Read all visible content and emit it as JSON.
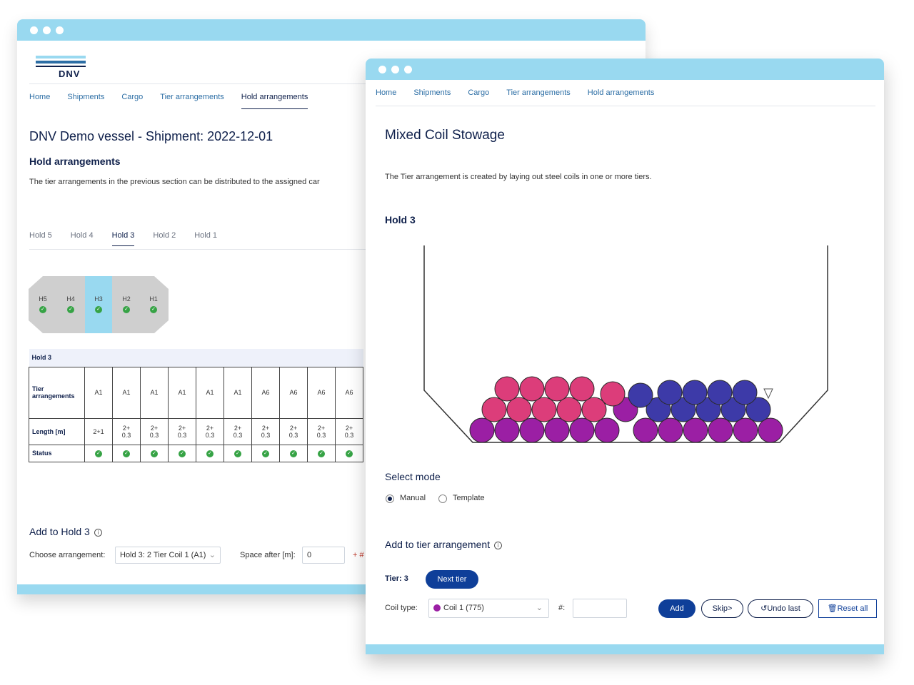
{
  "back_window": {
    "brand": "DNV",
    "nav": [
      "Home",
      "Shipments",
      "Cargo",
      "Tier arrangements",
      "Hold arrangements"
    ],
    "title": "DNV Demo vessel - Shipment: 2022-12-01",
    "subtitle": "Hold arrangements",
    "description": "The tier arrangements in the previous section can be distributed to the assigned car",
    "hold_tabs": [
      "Hold 5",
      "Hold 4",
      "Hold 3",
      "Hold 2",
      "Hold 1"
    ],
    "ship_holds": [
      "H5",
      "H4",
      "H3",
      "H2",
      "H1"
    ],
    "table": {
      "caption": "Hold 3",
      "tier_label": "Tier arrangements",
      "length_label": "Length [m]",
      "status_label": "Status",
      "arrangements": [
        "A1",
        "A1",
        "A1",
        "A1",
        "A1",
        "A1",
        "A6",
        "A6",
        "A6",
        "A6"
      ],
      "length_first": "2+1",
      "lengths": [
        [
          "2+",
          "0.3"
        ],
        [
          "2+",
          "0.3"
        ],
        [
          "2+",
          "0.3"
        ],
        [
          "2+",
          "0.3"
        ],
        [
          "2+",
          "0.3"
        ],
        [
          "2+",
          "0.3"
        ],
        [
          "2+",
          "0.3"
        ],
        [
          "2+",
          "0.3"
        ],
        [
          "2+",
          "0.3"
        ],
        [
          "2+",
          "0.3"
        ]
      ]
    },
    "add_title": "Add to Hold 3",
    "choose_label": "Choose arrangement:",
    "choose_value": "Hold 3: 2 Tier Coil 1 (A1)",
    "space_label": "Space after [m]:",
    "space_value": "0",
    "trailing": "+ #"
  },
  "front_window": {
    "nav": [
      "Home",
      "Shipments",
      "Cargo",
      "Tier arrangements",
      "Hold arrangements"
    ],
    "title": "Mixed Coil Stowage",
    "description": "The Tier arrangement is created by laying out steel coils in one or more tiers.",
    "hold_title": "Hold 3",
    "mode_title": "Select mode",
    "mode_manual": "Manual",
    "mode_template": "Template",
    "mode_selected": "Manual",
    "add_tier_title": "Add to tier arrangement",
    "tier_label": "Tier: 3",
    "next_tier": "Next tier",
    "coil_type_label": "Coil type:",
    "coil_type_value": "Coil 1 (775)",
    "count_label": "#:",
    "count_value": "",
    "add_btn": "Add",
    "skip_btn": "Skip>",
    "undo_btn": "Undo last",
    "reset_btn": "Reset all"
  },
  "colors": {
    "accent": "#99d9f0",
    "navy": "#0f204b",
    "coil_pink": "#dc3d7a",
    "coil_purple": "#9b1fa4",
    "coil_blue": "#3d3aa8",
    "check_green": "#36a345",
    "hold_highlight": "#99d9f0"
  },
  "icons": [
    "info-icon",
    "check-icon",
    "chevron-down-icon",
    "undo-icon",
    "trash-icon"
  ]
}
